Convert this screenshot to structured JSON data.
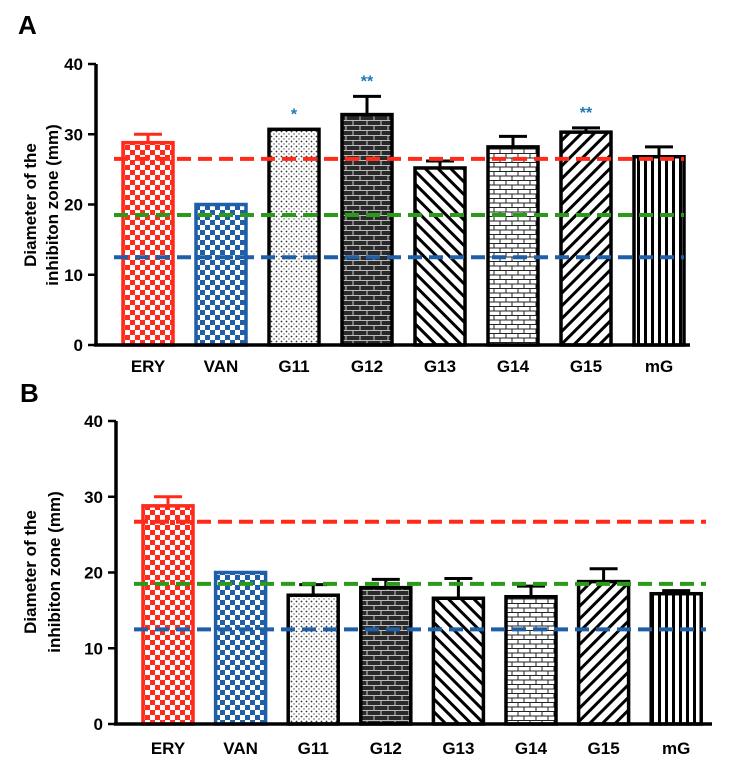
{
  "chart_data": [
    {
      "panel": "A",
      "type": "bar",
      "ylabel": [
        "Diameter of the",
        "inhibiton zone (mm)"
      ],
      "ylim": [
        0,
        40
      ],
      "yticks": [
        "0",
        "10",
        "20",
        "30",
        "40"
      ],
      "categories": [
        "ERY",
        "VAN",
        "G11",
        "G12",
        "G13",
        "G14",
        "G15",
        "mG"
      ],
      "values": [
        28.8,
        20.0,
        30.7,
        32.8,
        25.2,
        28.2,
        30.3,
        26.8
      ],
      "errors": [
        1.2,
        0.0,
        0.0,
        2.6,
        1.0,
        1.5,
        0.6,
        1.4
      ],
      "significance": [
        "",
        "",
        "*",
        "**",
        "",
        "",
        "**",
        ""
      ],
      "reference_lines": [
        {
          "color": "#ff2a1a",
          "value": 26.5
        },
        {
          "color": "#2b9a1a",
          "value": 18.5
        },
        {
          "color": "#1f5fa8",
          "value": 12.5
        }
      ]
    },
    {
      "panel": "B",
      "type": "bar",
      "ylabel": [
        "Diameter of the",
        "inhibiton zone (mm)"
      ],
      "ylim": [
        0,
        40
      ],
      "yticks": [
        "0",
        "10",
        "20",
        "30",
        "40"
      ],
      "categories": [
        "ERY",
        "VAN",
        "G11",
        "G12",
        "G13",
        "G14",
        "G15",
        "mG"
      ],
      "values": [
        28.8,
        20.0,
        17.0,
        18.0,
        16.6,
        16.8,
        18.8,
        17.2
      ],
      "errors": [
        1.2,
        0.0,
        1.4,
        1.1,
        2.6,
        1.4,
        1.7,
        0.4
      ],
      "significance": [
        "",
        "",
        "",
        "",
        "",
        "",
        "",
        ""
      ],
      "reference_lines": [
        {
          "color": "#ff2a1a",
          "value": 26.7
        },
        {
          "color": "#2b9a1a",
          "value": 18.5
        },
        {
          "color": "#1f5fa8",
          "value": 12.5
        }
      ]
    }
  ]
}
